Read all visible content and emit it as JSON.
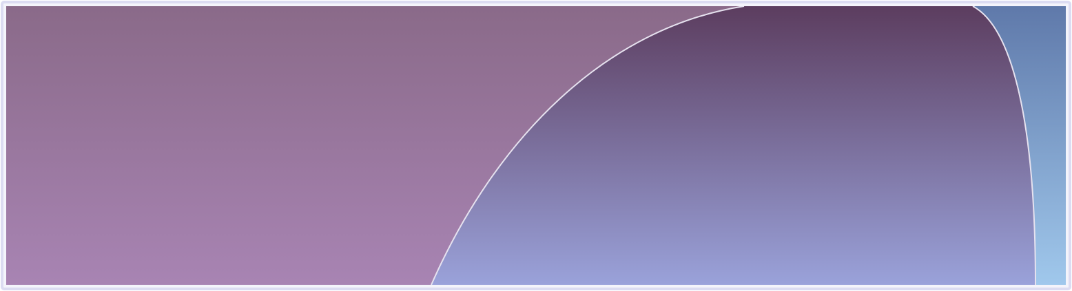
{
  "colors": {
    "outer_frame": "#dcdcf2",
    "left_panel_top": "#8a6a89",
    "left_panel_bottom": "#a884b3",
    "center_panel_top": "#5c3d5f",
    "center_panel_bottom": "#9aa2da",
    "right_panel_top": "#5f79aa",
    "right_panel_bottom": "#a0c8ec",
    "curve_stroke": "#e6e2ef"
  }
}
